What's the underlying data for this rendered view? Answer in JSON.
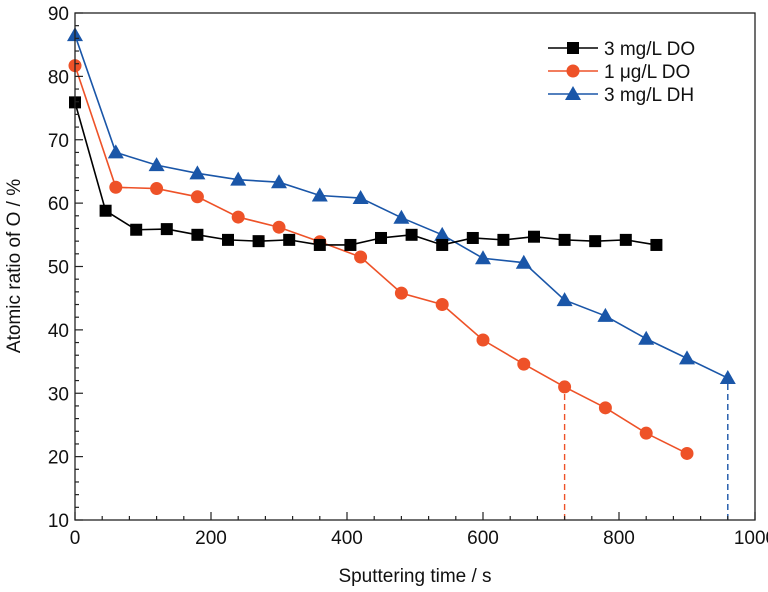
{
  "chart_data": {
    "type": "line",
    "title": "",
    "xlabel": "Sputtering time / s",
    "ylabel": "Atomic ratio of O / %",
    "xlim": [
      0,
      1000
    ],
    "ylim": [
      10,
      90
    ],
    "xticks": [
      0,
      200,
      400,
      600,
      800,
      1000
    ],
    "yticks": [
      10,
      20,
      30,
      40,
      50,
      60,
      70,
      80,
      90
    ],
    "x_minor_step": 40,
    "y_minor_step": 2,
    "grid": false,
    "legend_position": "top-right",
    "series": [
      {
        "name": "3 mg/L DO",
        "color": "#000000",
        "marker": "square",
        "x": [
          0,
          45,
          90,
          135,
          180,
          225,
          270,
          315,
          360,
          405,
          450,
          495,
          540,
          585,
          630,
          675,
          720,
          765,
          810,
          855
        ],
        "values": [
          75.9,
          58.8,
          55.8,
          55.9,
          55.0,
          54.2,
          54.0,
          54.2,
          53.4,
          53.4,
          54.5,
          55.0,
          53.4,
          54.5,
          54.2,
          54.7,
          54.2,
          54.0,
          54.2,
          53.4
        ]
      },
      {
        "name": "1 μg/L DO",
        "color": "#ee5228",
        "marker": "circle",
        "x": [
          0,
          60,
          120,
          180,
          240,
          300,
          360,
          420,
          480,
          540,
          600,
          660,
          720,
          780,
          840,
          900
        ],
        "values": [
          81.7,
          62.5,
          62.3,
          61.0,
          57.8,
          56.2,
          53.9,
          51.5,
          45.8,
          44.0,
          38.4,
          34.6,
          31.0,
          27.7,
          23.7,
          20.5
        ]
      },
      {
        "name": "3 mg/L DH",
        "color": "#1a56a8",
        "marker": "triangle",
        "x": [
          0,
          60,
          120,
          180,
          240,
          300,
          360,
          420,
          480,
          540,
          600,
          660,
          720,
          780,
          840,
          900,
          960
        ],
        "values": [
          86.5,
          68.0,
          66.0,
          64.7,
          63.7,
          63.3,
          61.2,
          60.8,
          57.7,
          55.0,
          51.3,
          50.6,
          44.7,
          42.2,
          38.6,
          35.5,
          32.4
        ]
      }
    ],
    "annotations": [
      {
        "type": "vertical-dashed-line",
        "x": 720,
        "from_y": 10,
        "to_y": 31.0,
        "color": "#ee5228"
      },
      {
        "type": "vertical-dashed-line",
        "x": 960,
        "from_y": 10,
        "to_y": 32.4,
        "color": "#1a56a8"
      }
    ]
  }
}
